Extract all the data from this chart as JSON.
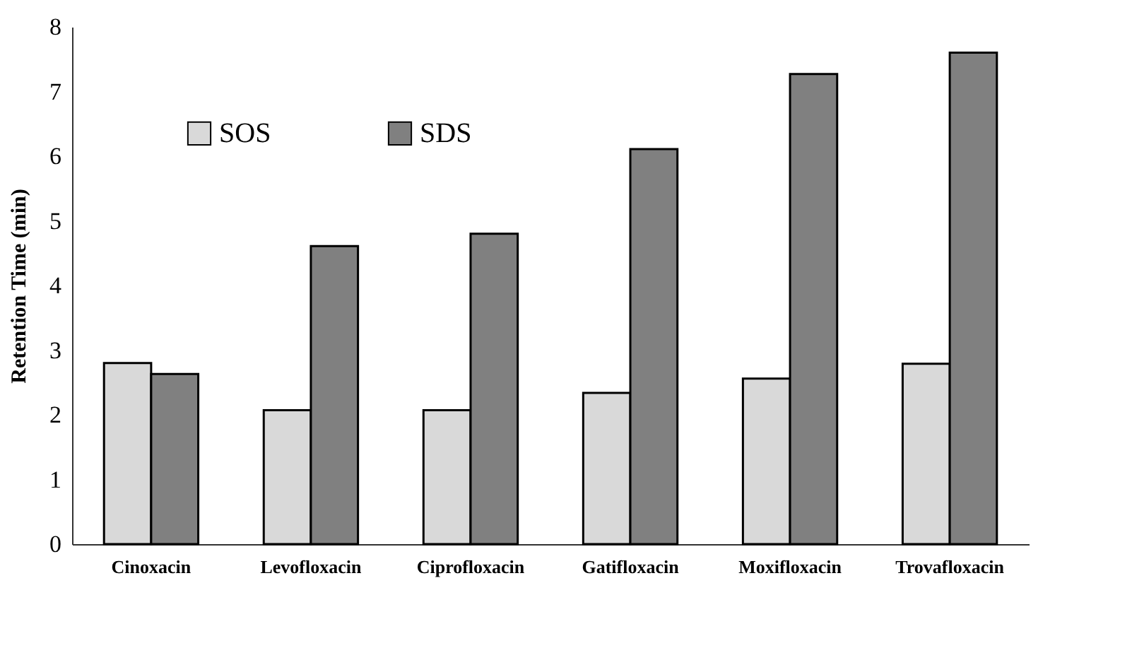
{
  "chart_data": {
    "type": "bar",
    "ylabel": "Retention Time (min)",
    "categories": [
      "Cinoxacin",
      "Levofloxacin",
      "Ciprofloxacin",
      "Gatifloxacin",
      "Moxifloxacin",
      "Trovafloxacin"
    ],
    "series": [
      {
        "name": "SOS",
        "color": "#d9d9d9",
        "values": [
          2.8,
          2.07,
          2.07,
          2.34,
          2.56,
          2.79
        ]
      },
      {
        "name": "SDS",
        "color": "#808080",
        "values": [
          2.63,
          4.61,
          4.8,
          6.11,
          7.27,
          7.6
        ]
      }
    ],
    "ylim": [
      0,
      8
    ],
    "yticks": [
      0,
      1,
      2,
      3,
      4,
      5,
      6,
      7,
      8
    ],
    "grid": false,
    "legend": "top left"
  }
}
